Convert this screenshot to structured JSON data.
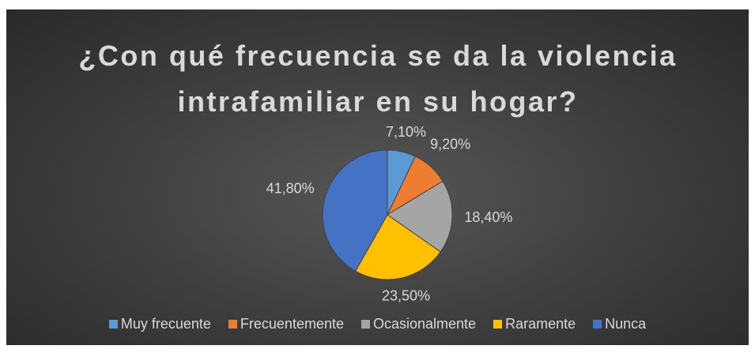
{
  "chart_data": {
    "type": "pie",
    "title": "¿Con qué frecuencia se da la violencia intrafamiliar en su hogar?",
    "categories": [
      "Muy frecuente",
      "Frecuentemente",
      "Ocasionalmente",
      "Raramente",
      "Nunca"
    ],
    "values": [
      7.1,
      9.2,
      18.4,
      23.5,
      41.8
    ],
    "value_labels": [
      "7,10%",
      "9,20%",
      "18,40%",
      "23,50%",
      "41,80%"
    ],
    "colors": [
      "#5b9bd5",
      "#ed7d31",
      "#a5a5a5",
      "#ffc000",
      "#4472c4"
    ],
    "legend": "bottom"
  }
}
